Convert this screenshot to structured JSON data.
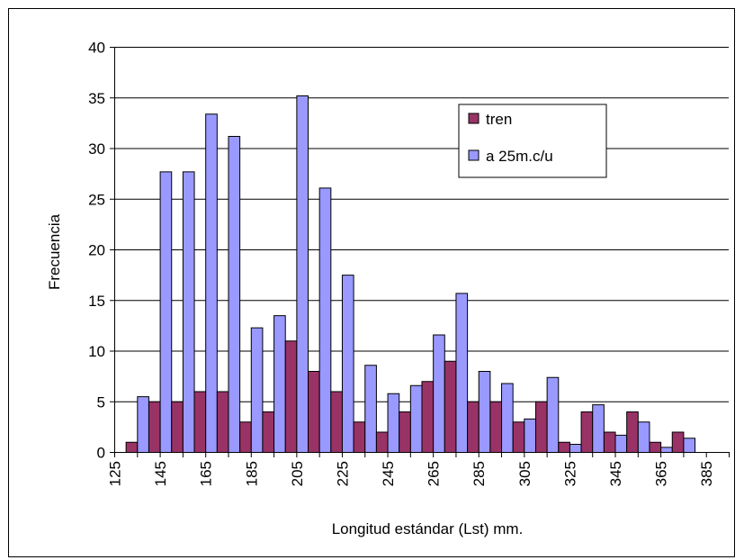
{
  "chart_data": {
    "type": "bar",
    "xlabel": "Longitud estándar (Lst) mm.",
    "ylabel": "Frecuencia",
    "ylim": [
      0,
      40
    ],
    "yticks": [
      0,
      5,
      10,
      15,
      20,
      25,
      30,
      35,
      40
    ],
    "xlim": [
      125,
      395
    ],
    "xticks": [
      125,
      135,
      145,
      155,
      165,
      175,
      185,
      195,
      205,
      215,
      225,
      235,
      245,
      255,
      265,
      275,
      285,
      295,
      305,
      315,
      325,
      335,
      345,
      355,
      365,
      375,
      385,
      395
    ],
    "xtick_labels": [
      "125",
      "",
      "145",
      "",
      "165",
      "",
      "185",
      "",
      "205",
      "",
      "225",
      "",
      "245",
      "",
      "265",
      "",
      "285",
      "",
      "305",
      "",
      "325",
      "",
      "345",
      "",
      "365",
      "",
      "385",
      ""
    ],
    "categories": [
      135,
      145,
      155,
      165,
      175,
      185,
      195,
      205,
      215,
      225,
      235,
      245,
      255,
      265,
      275,
      285,
      295,
      305,
      315,
      325,
      335,
      345,
      355,
      365,
      375
    ],
    "grid": true,
    "legend": "upper-right inside",
    "series": [
      {
        "name": "tren",
        "color": "#993366",
        "values": [
          1,
          5,
          5,
          6,
          6,
          3,
          4,
          11,
          8,
          6,
          3,
          2,
          4,
          7,
          9,
          5,
          5,
          3,
          5,
          1,
          4,
          2,
          4,
          1,
          2
        ]
      },
      {
        "name": "a 25m.c/u",
        "color": "#9999ff",
        "values": [
          5.5,
          27.7,
          27.7,
          33.4,
          31.2,
          12.3,
          13.5,
          35.2,
          26.1,
          17.5,
          8.6,
          5.8,
          6.6,
          11.6,
          15.7,
          8,
          6.8,
          3.3,
          7.4,
          0.8,
          4.7,
          1.7,
          3,
          0.5,
          1.4
        ]
      }
    ]
  }
}
